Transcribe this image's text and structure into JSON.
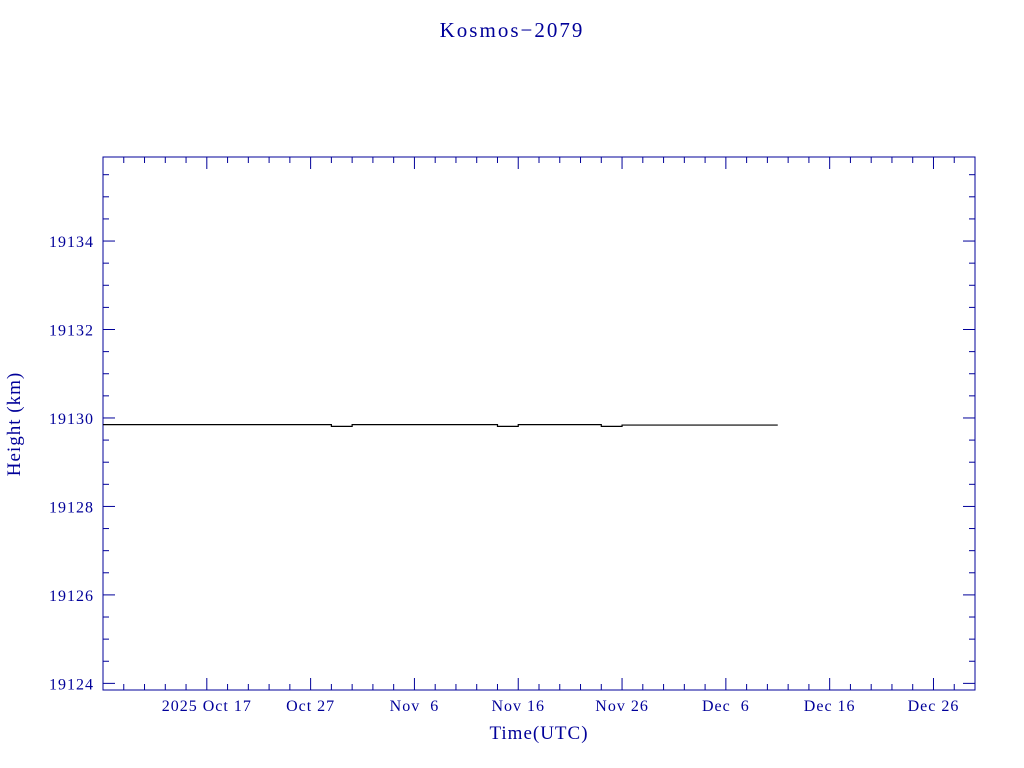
{
  "chart_data": {
    "type": "line",
    "title": "Kosmos−2079",
    "xlabel": "Time(UTC)",
    "ylabel": "Height (km)",
    "x_axis": {
      "unit": "days since 2025 Oct 7",
      "lim": [
        0,
        84
      ],
      "minor_step": 2,
      "major_ticks": [
        {
          "pos": 10,
          "label": "2025 Oct 17"
        },
        {
          "pos": 20,
          "label": "Oct 27"
        },
        {
          "pos": 30,
          "label": "Nov  6"
        },
        {
          "pos": 40,
          "label": "Nov 16"
        },
        {
          "pos": 50,
          "label": "Nov 26"
        },
        {
          "pos": 60,
          "label": "Dec  6"
        },
        {
          "pos": 70,
          "label": "Dec 16"
        },
        {
          "pos": 80,
          "label": "Dec 26"
        }
      ]
    },
    "y_axis": {
      "lim": [
        19123.85,
        19135.9
      ],
      "minor_step": 0.5,
      "major_ticks": [
        {
          "pos": 19124,
          "label": "19124"
        },
        {
          "pos": 19126,
          "label": "19126"
        },
        {
          "pos": 19128,
          "label": "19128"
        },
        {
          "pos": 19130,
          "label": "19130"
        },
        {
          "pos": 19132,
          "label": "19132"
        },
        {
          "pos": 19134,
          "label": "19134"
        }
      ]
    },
    "series": [
      {
        "name": "height-km",
        "color": "#000000",
        "x": [
          0,
          22,
          22,
          24,
          24,
          38,
          38,
          40,
          40,
          48,
          48,
          50,
          50,
          65
        ],
        "y": [
          19129.85,
          19129.85,
          19129.81,
          19129.81,
          19129.85,
          19129.85,
          19129.81,
          19129.81,
          19129.85,
          19129.85,
          19129.81,
          19129.81,
          19129.84,
          19129.84
        ]
      }
    ],
    "style": {
      "axis_color": "#000099",
      "background": "#ffffff"
    }
  }
}
